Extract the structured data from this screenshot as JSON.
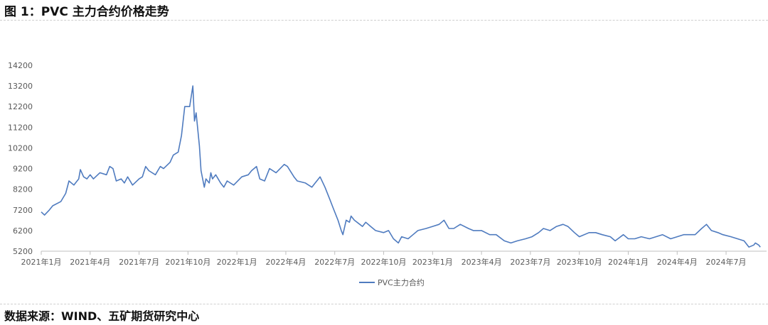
{
  "title": "图 1：PVC 主力合约价格走势",
  "source": "数据来源：WIND、五矿期货研究中心",
  "chart_data": {
    "type": "line",
    "title": "",
    "xlabel": "",
    "ylabel": "",
    "ylim": [
      5200,
      14200
    ],
    "yticks": [
      5200,
      6200,
      7200,
      8200,
      9200,
      10200,
      11200,
      12200,
      13200,
      14200
    ],
    "x_unit": "months since 2021-01",
    "xticks": [
      0,
      3,
      6,
      9,
      12,
      15,
      18,
      21,
      24,
      27,
      30,
      33,
      36,
      39,
      42
    ],
    "xtick_labels": [
      "2021年1月",
      "2021年4月",
      "2021年7月",
      "2021年10月",
      "2022年1月",
      "2022年4月",
      "2022年7月",
      "2022年10月",
      "2023年1月",
      "2023年4月",
      "2023年7月",
      "2023年10月",
      "2024年1月",
      "2024年4月",
      "2024年7月"
    ],
    "grid": false,
    "legend_position": "bottom",
    "color": "#4f7bbf",
    "series": [
      {
        "name": "PVC主力合约",
        "points": [
          [
            0,
            7100
          ],
          [
            0.2,
            6950
          ],
          [
            0.5,
            7200
          ],
          [
            0.7,
            7400
          ],
          [
            1.2,
            7600
          ],
          [
            1.5,
            8000
          ],
          [
            1.7,
            8600
          ],
          [
            2.0,
            8400
          ],
          [
            2.3,
            8700
          ],
          [
            2.4,
            9150
          ],
          [
            2.6,
            8800
          ],
          [
            2.8,
            8700
          ],
          [
            3.0,
            8900
          ],
          [
            3.2,
            8700
          ],
          [
            3.6,
            9000
          ],
          [
            4.0,
            8900
          ],
          [
            4.2,
            9300
          ],
          [
            4.4,
            9200
          ],
          [
            4.6,
            8600
          ],
          [
            4.9,
            8700
          ],
          [
            5.1,
            8500
          ],
          [
            5.3,
            8800
          ],
          [
            5.6,
            8400
          ],
          [
            6.0,
            8700
          ],
          [
            6.2,
            8800
          ],
          [
            6.4,
            9300
          ],
          [
            6.6,
            9100
          ],
          [
            7.0,
            8900
          ],
          [
            7.3,
            9300
          ],
          [
            7.5,
            9200
          ],
          [
            7.9,
            9500
          ],
          [
            8.1,
            9850
          ],
          [
            8.4,
            10000
          ],
          [
            8.6,
            10800
          ],
          [
            8.8,
            12200
          ],
          [
            9.1,
            12200
          ],
          [
            9.3,
            13200
          ],
          [
            9.4,
            11500
          ],
          [
            9.5,
            11900
          ],
          [
            9.7,
            10300
          ],
          [
            9.8,
            9100
          ],
          [
            10.0,
            8300
          ],
          [
            10.1,
            8700
          ],
          [
            10.3,
            8500
          ],
          [
            10.4,
            9000
          ],
          [
            10.5,
            8700
          ],
          [
            10.7,
            8900
          ],
          [
            11.0,
            8500
          ],
          [
            11.2,
            8300
          ],
          [
            11.4,
            8600
          ],
          [
            11.8,
            8400
          ],
          [
            12.3,
            8800
          ],
          [
            12.7,
            8900
          ],
          [
            12.9,
            9100
          ],
          [
            13.2,
            9300
          ],
          [
            13.4,
            8700
          ],
          [
            13.7,
            8600
          ],
          [
            14.0,
            9200
          ],
          [
            14.4,
            9000
          ],
          [
            14.9,
            9400
          ],
          [
            15.1,
            9300
          ],
          [
            15.5,
            8800
          ],
          [
            15.7,
            8600
          ],
          [
            16.2,
            8500
          ],
          [
            16.6,
            8300
          ],
          [
            16.8,
            8500
          ],
          [
            17.1,
            8800
          ],
          [
            17.4,
            8300
          ],
          [
            17.7,
            7700
          ],
          [
            17.9,
            7300
          ],
          [
            18.2,
            6700
          ],
          [
            18.4,
            6200
          ],
          [
            18.5,
            6000
          ],
          [
            18.7,
            6700
          ],
          [
            18.9,
            6600
          ],
          [
            19.0,
            6900
          ],
          [
            19.2,
            6700
          ],
          [
            19.7,
            6400
          ],
          [
            19.9,
            6600
          ],
          [
            20.2,
            6400
          ],
          [
            20.5,
            6200
          ],
          [
            21.0,
            6100
          ],
          [
            21.3,
            6200
          ],
          [
            21.6,
            5800
          ],
          [
            21.9,
            5600
          ],
          [
            22.1,
            5900
          ],
          [
            22.5,
            5800
          ],
          [
            22.8,
            6000
          ],
          [
            23.1,
            6200
          ],
          [
            23.6,
            6300
          ],
          [
            24.0,
            6400
          ],
          [
            24.4,
            6500
          ],
          [
            24.7,
            6700
          ],
          [
            25.0,
            6300
          ],
          [
            25.3,
            6300
          ],
          [
            25.7,
            6500
          ],
          [
            26.2,
            6300
          ],
          [
            26.5,
            6200
          ],
          [
            27.0,
            6200
          ],
          [
            27.5,
            6000
          ],
          [
            27.9,
            6000
          ],
          [
            28.4,
            5700
          ],
          [
            28.8,
            5600
          ],
          [
            29.2,
            5700
          ],
          [
            29.7,
            5800
          ],
          [
            30.1,
            5900
          ],
          [
            30.5,
            6100
          ],
          [
            30.8,
            6300
          ],
          [
            31.2,
            6200
          ],
          [
            31.6,
            6400
          ],
          [
            32.0,
            6500
          ],
          [
            32.3,
            6400
          ],
          [
            32.7,
            6100
          ],
          [
            33.0,
            5900
          ],
          [
            33.6,
            6100
          ],
          [
            34.0,
            6100
          ],
          [
            34.4,
            6000
          ],
          [
            34.9,
            5900
          ],
          [
            35.2,
            5700
          ],
          [
            35.7,
            6000
          ],
          [
            36.0,
            5800
          ],
          [
            36.4,
            5800
          ],
          [
            36.8,
            5900
          ],
          [
            37.3,
            5800
          ],
          [
            37.7,
            5900
          ],
          [
            38.1,
            6000
          ],
          [
            38.6,
            5800
          ],
          [
            39.0,
            5900
          ],
          [
            39.4,
            6000
          ],
          [
            40.1,
            6000
          ],
          [
            40.5,
            6300
          ],
          [
            40.8,
            6500
          ],
          [
            41.1,
            6200
          ],
          [
            41.5,
            6100
          ],
          [
            41.8,
            6000
          ],
          [
            42.3,
            5900
          ],
          [
            42.7,
            5800
          ],
          [
            43.1,
            5700
          ],
          [
            43.4,
            5400
          ],
          [
            43.7,
            5500
          ],
          [
            43.8,
            5600
          ],
          [
            44.0,
            5500
          ],
          [
            44.1,
            5400
          ]
        ]
      }
    ]
  }
}
